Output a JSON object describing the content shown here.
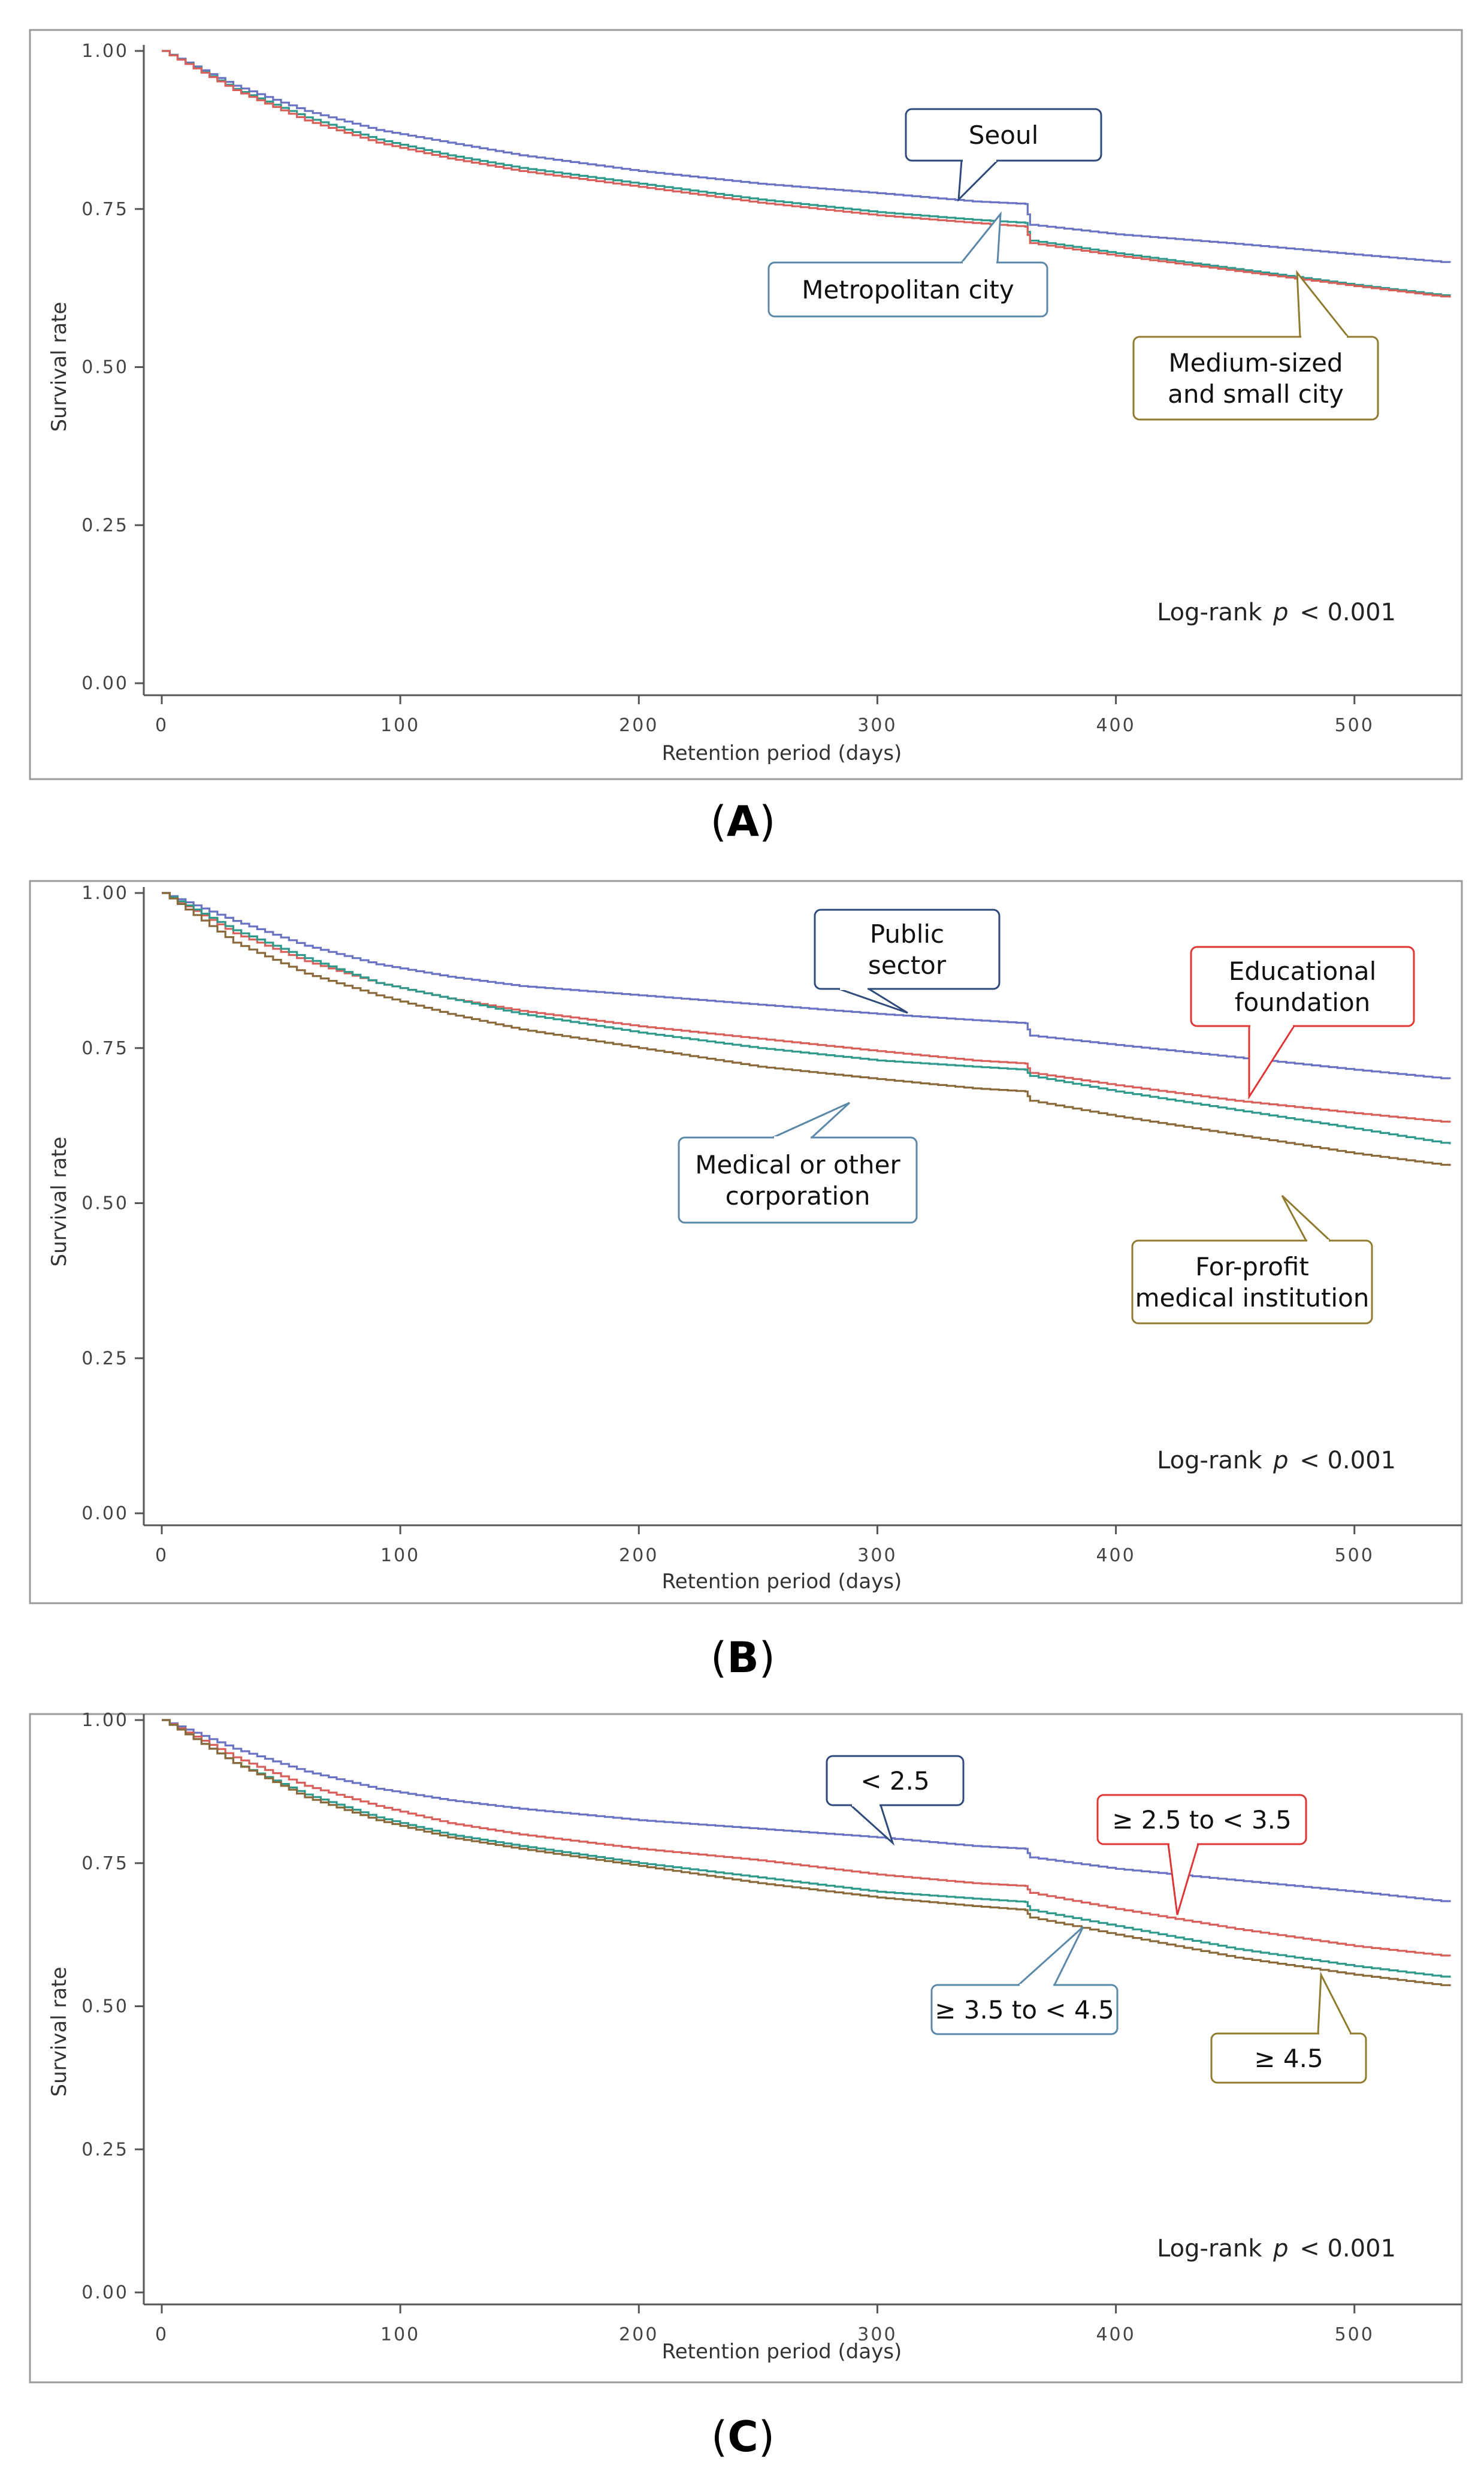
{
  "figure": {
    "panels": [
      "A",
      "B",
      "C"
    ]
  },
  "colors": {
    "blue": "#6a72c4",
    "red": "#d9605a",
    "teal": "#2f9a8c",
    "brown": "#8a6a3a",
    "frame": "#9a9a9a",
    "axis": "#555555",
    "callout_dark_blue": "#2e4a7a",
    "callout_steel": "#5b87a8",
    "callout_red": "#e03535",
    "callout_olive": "#8f7a2e"
  },
  "chart_data": [
    {
      "type": "line",
      "panel_label": "A",
      "xlabel": "Retention period (days)",
      "ylabel": "Survival rate",
      "xlim": [
        0,
        540
      ],
      "ylim": [
        0,
        1
      ],
      "xticks": [
        "0",
        "100",
        "200",
        "300",
        "400",
        "500"
      ],
      "yticks": [
        "0.00",
        "0.25",
        "0.50",
        "0.75",
        "1.00"
      ],
      "annotation": {
        "prefix": "Log-rank ",
        "p": "p",
        "suffix": " < 0.001"
      },
      "x": [
        0,
        30,
        60,
        90,
        120,
        150,
        200,
        250,
        300,
        340,
        362,
        364,
        400,
        450,
        500,
        540
      ],
      "series": [
        {
          "name": "Seoul",
          "color": "blue",
          "values": [
            1.0,
            0.945,
            0.905,
            0.875,
            0.855,
            0.835,
            0.81,
            0.79,
            0.775,
            0.762,
            0.758,
            0.725,
            0.71,
            0.695,
            0.678,
            0.665
          ]
        },
        {
          "name": "Metropolitan city",
          "color": "teal",
          "values": [
            1.0,
            0.94,
            0.895,
            0.86,
            0.835,
            0.815,
            0.79,
            0.765,
            0.745,
            0.733,
            0.728,
            0.7,
            0.68,
            0.655,
            0.63,
            0.612
          ]
        },
        {
          "name": "Medium-sized and small city",
          "color": "red",
          "values": [
            1.0,
            0.938,
            0.89,
            0.855,
            0.83,
            0.81,
            0.785,
            0.76,
            0.74,
            0.728,
            0.722,
            0.696,
            0.676,
            0.652,
            0.628,
            0.61
          ]
        }
      ],
      "callouts": [
        {
          "text": "Seoul",
          "border": "callout_dark_blue"
        },
        {
          "text": "Metropolitan city",
          "border": "callout_steel"
        },
        {
          "text": "Medium-sized\nand small city",
          "border": "callout_olive"
        }
      ]
    },
    {
      "type": "line",
      "panel_label": "B",
      "xlabel": "Retention period (days)",
      "ylabel": "Survival rate",
      "xlim": [
        0,
        540
      ],
      "ylim": [
        0,
        1
      ],
      "xticks": [
        "0",
        "100",
        "200",
        "300",
        "400",
        "500"
      ],
      "yticks": [
        "0.00",
        "0.25",
        "0.50",
        "0.75",
        "1.00"
      ],
      "annotation": {
        "prefix": "Log-rank ",
        "p": "p",
        "suffix": " < 0.001"
      },
      "x": [
        0,
        30,
        60,
        90,
        120,
        150,
        200,
        250,
        300,
        340,
        362,
        364,
        400,
        450,
        500,
        540
      ],
      "series": [
        {
          "name": "Public sector",
          "color": "blue",
          "values": [
            1.0,
            0.955,
            0.915,
            0.885,
            0.865,
            0.85,
            0.835,
            0.82,
            0.805,
            0.795,
            0.79,
            0.77,
            0.755,
            0.735,
            0.715,
            0.7
          ]
        },
        {
          "name": "Educational foundation",
          "color": "red",
          "values": [
            1.0,
            0.935,
            0.89,
            0.855,
            0.83,
            0.81,
            0.785,
            0.765,
            0.745,
            0.73,
            0.725,
            0.71,
            0.69,
            0.665,
            0.645,
            0.63
          ]
        },
        {
          "name": "Medical or other corporation",
          "color": "teal",
          "values": [
            1.0,
            0.94,
            0.895,
            0.855,
            0.83,
            0.805,
            0.775,
            0.75,
            0.73,
            0.72,
            0.715,
            0.705,
            0.68,
            0.65,
            0.62,
            0.595
          ]
        },
        {
          "name": "For-profit medical institution",
          "color": "brown",
          "values": [
            1.0,
            0.92,
            0.87,
            0.835,
            0.805,
            0.78,
            0.75,
            0.72,
            0.7,
            0.685,
            0.68,
            0.665,
            0.64,
            0.61,
            0.58,
            0.56
          ]
        }
      ],
      "callouts": [
        {
          "text": "Public\nsector",
          "border": "callout_dark_blue"
        },
        {
          "text": "Educational\nfoundation",
          "border": "callout_red"
        },
        {
          "text": "Medical or other\ncorporation",
          "border": "callout_steel"
        },
        {
          "text": "For-profit\nmedical institution",
          "border": "callout_olive"
        }
      ]
    },
    {
      "type": "line",
      "panel_label": "C",
      "xlabel": "Retention period (days)",
      "ylabel": "Survival rate",
      "xlim": [
        0,
        540
      ],
      "ylim": [
        0,
        1
      ],
      "xticks": [
        "0",
        "100",
        "200",
        "300",
        "400",
        "500"
      ],
      "yticks": [
        "0.00",
        "0.25",
        "0.50",
        "0.75",
        "1.00"
      ],
      "annotation": {
        "prefix": "Log-rank ",
        "p": "p",
        "suffix": " < 0.001"
      },
      "x": [
        0,
        30,
        60,
        90,
        120,
        150,
        200,
        250,
        300,
        340,
        362,
        364,
        400,
        450,
        500,
        540
      ],
      "series": [
        {
          "name": "< 2.5",
          "color": "blue",
          "values": [
            1.0,
            0.95,
            0.91,
            0.88,
            0.86,
            0.845,
            0.825,
            0.81,
            0.795,
            0.78,
            0.775,
            0.76,
            0.74,
            0.72,
            0.7,
            0.682
          ]
        },
        {
          "name": "≥ 2.5 to < 3.5",
          "color": "red",
          "values": [
            1.0,
            0.935,
            0.885,
            0.85,
            0.82,
            0.8,
            0.775,
            0.755,
            0.73,
            0.715,
            0.71,
            0.698,
            0.67,
            0.635,
            0.605,
            0.587
          ]
        },
        {
          "name": "≥ 3.5 to < 4.5",
          "color": "teal",
          "values": [
            1.0,
            0.925,
            0.87,
            0.83,
            0.8,
            0.78,
            0.75,
            0.725,
            0.7,
            0.688,
            0.682,
            0.668,
            0.64,
            0.6,
            0.57,
            0.55
          ]
        },
        {
          "name": "≥ 4.5",
          "color": "brown",
          "values": [
            1.0,
            0.925,
            0.865,
            0.825,
            0.795,
            0.775,
            0.745,
            0.715,
            0.69,
            0.675,
            0.668,
            0.655,
            0.625,
            0.585,
            0.555,
            0.535
          ]
        }
      ],
      "callouts": [
        {
          "text": "< 2.5",
          "border": "callout_dark_blue"
        },
        {
          "text": "≥ 2.5 to < 3.5",
          "border": "callout_red"
        },
        {
          "text": "≥ 3.5 to < 4.5",
          "border": "callout_steel"
        },
        {
          "text": "≥ 4.5",
          "border": "callout_olive"
        }
      ]
    }
  ]
}
